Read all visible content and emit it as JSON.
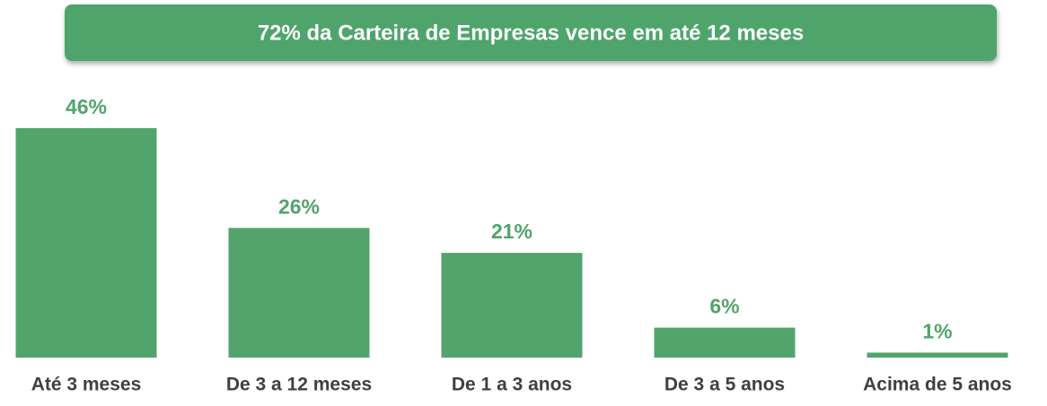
{
  "chart_data": {
    "type": "bar",
    "title": "72% da Carteira de Empresas vence em até 12 meses",
    "categories": [
      "Até 3 meses",
      "De 3 a 12 meses",
      "De 1 a 3 anos",
      "De 3 a 5 anos",
      "Acima de 5 anos"
    ],
    "values": [
      46,
      26,
      21,
      6,
      1
    ],
    "value_labels": [
      "46%",
      "26%",
      "21%",
      "6%",
      "1%"
    ],
    "color": "#52a46c"
  }
}
